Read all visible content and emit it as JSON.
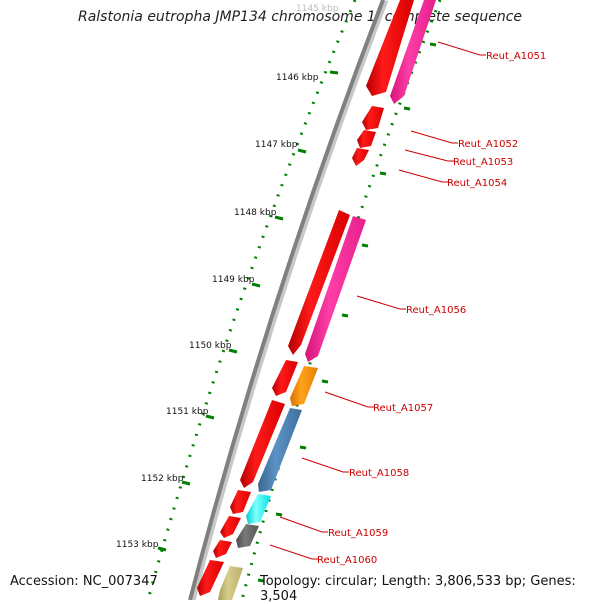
{
  "title": "Ralstonia eutropha JMP134 chromosome 1, complete sequence",
  "footer": {
    "accession": "Accession: NC_007347",
    "summary": "Topology: circular; Length: 3,806,533 bp; Genes: 3,504"
  },
  "ruler": [
    {
      "label": "1145 kbp",
      "faded": true
    },
    {
      "label": "1146 kbp"
    },
    {
      "label": "1147 kbp"
    },
    {
      "label": "1148 kbp"
    },
    {
      "label": "1149 kbp"
    },
    {
      "label": "1150 kbp"
    },
    {
      "label": "1151 kbp"
    },
    {
      "label": "1152 kbp"
    },
    {
      "label": "1153 kbp"
    }
  ],
  "gene_labels": [
    "Reut_A1051",
    "Reut_A1052",
    "Reut_A1053",
    "Reut_A1054",
    "Reut_A1056",
    "Reut_A1057",
    "Reut_A1058",
    "Reut_A1059",
    "Reut_A1060"
  ],
  "colors": {
    "backbone": "#808080",
    "forward_strand": "#ff0000",
    "pink": "#ff2d9a",
    "orange": "#ff8c00",
    "steel_blue": "#4a7fb0",
    "cyan": "#00ffff",
    "dark_gray": "#606060",
    "khaki": "#c8bd78",
    "tick_green": "#008000",
    "label_red": "#cc0000"
  }
}
